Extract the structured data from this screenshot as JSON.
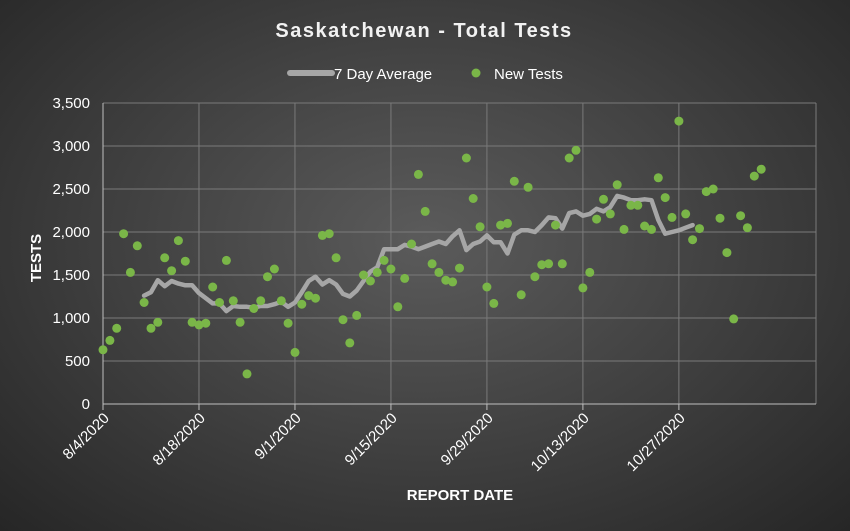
{
  "chart_data": {
    "type": "scatter",
    "title": "Saskatchewan - Total Tests",
    "xlabel": "REPORT DATE",
    "ylabel": "TESTS",
    "ylim": [
      0,
      3500
    ],
    "yticks": [
      "0",
      "500",
      "1,000",
      "1,500",
      "2,000",
      "2,500",
      "3,000",
      "3,500"
    ],
    "ytick_values": [
      0,
      500,
      1000,
      1500,
      2000,
      2500,
      3000,
      3500
    ],
    "x_start": "2020-08-04",
    "x_end": "2020-11-16",
    "xtick_labels": [
      "8/4/2020",
      "8/18/2020",
      "9/1/2020",
      "9/15/2020",
      "9/29/2020",
      "10/13/2020",
      "10/27/2020"
    ],
    "xtick_dates": [
      "2020-08-04",
      "2020-08-18",
      "2020-09-01",
      "2020-09-15",
      "2020-09-29",
      "2020-10-13",
      "2020-10-27"
    ],
    "grid": true,
    "legend_position": "top-center",
    "series": [
      {
        "name": "7 Day Average",
        "kind": "line",
        "color": "#a6a6a6",
        "start_date": "2020-08-10",
        "values": [
          1260,
          1300,
          1440,
          1370,
          1430,
          1400,
          1380,
          1380,
          1290,
          1230,
          1170,
          1170,
          1080,
          1140,
          1130,
          1130,
          1120,
          1140,
          1140,
          1160,
          1190,
          1130,
          1180,
          1300,
          1430,
          1480,
          1390,
          1440,
          1390,
          1280,
          1250,
          1320,
          1430,
          1540,
          1590,
          1800,
          1800,
          1800,
          1850,
          1830,
          1800,
          1830,
          1860,
          1890,
          1860,
          1950,
          2020,
          1790,
          1860,
          1890,
          1960,
          1880,
          1880,
          1750,
          1970,
          2020,
          2020,
          2000,
          2080,
          2170,
          2160,
          2040,
          2220,
          2240,
          2190,
          2210,
          2270,
          2240,
          2290,
          2420,
          2400,
          2370,
          2370,
          2380,
          2370,
          2140,
          1980,
          2000,
          2020,
          2050,
          2080
        ]
      },
      {
        "name": "New Tests",
        "kind": "scatter",
        "color": "#7ab648",
        "start_date": "2020-08-04",
        "values": [
          630,
          740,
          880,
          1980,
          1530,
          1840,
          1180,
          880,
          950,
          1700,
          1550,
          1900,
          1660,
          950,
          920,
          940,
          1360,
          1180,
          1670,
          1200,
          950,
          350,
          1110,
          1200,
          1480,
          1570,
          1200,
          940,
          600,
          1160,
          1260,
          1230,
          1960,
          1980,
          1700,
          980,
          710,
          1030,
          1500,
          1430,
          1530,
          1670,
          1570,
          1130,
          1460,
          1860,
          2670,
          2240,
          1630,
          1530,
          1440,
          1420,
          1580,
          2860,
          2390,
          2060,
          1360,
          1170,
          2080,
          2100,
          2590,
          1270,
          2520,
          1480,
          1620,
          1630,
          2080,
          1630,
          2860,
          2950,
          1350,
          1530,
          2150,
          2380,
          2210,
          2550,
          2030,
          2310,
          2310,
          2070,
          2030,
          2630,
          2400,
          2170,
          3290,
          2210,
          1910,
          2040,
          2470,
          2500,
          2160,
          1760,
          990,
          2190,
          2050,
          2650,
          2730
        ]
      }
    ]
  }
}
